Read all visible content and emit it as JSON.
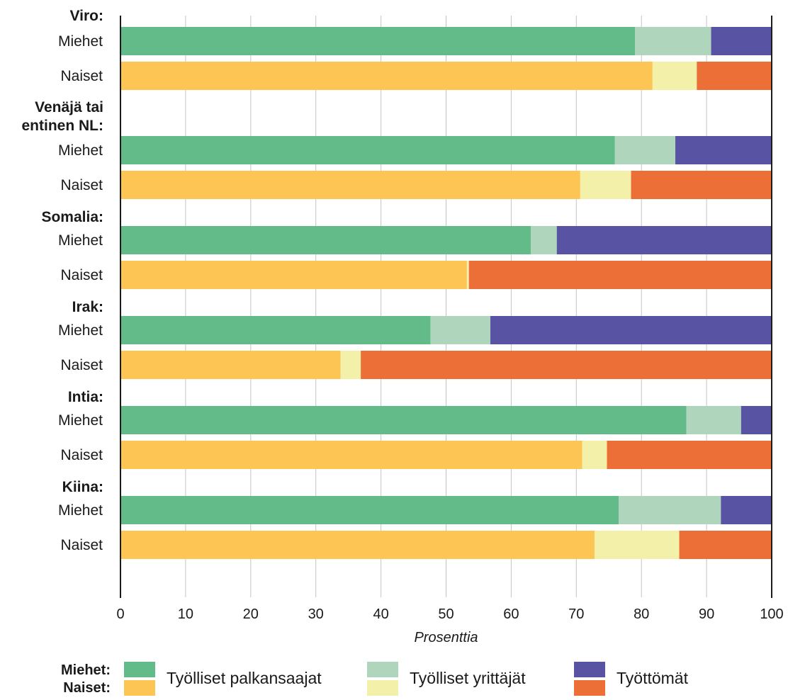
{
  "chart_data": {
    "type": "bar",
    "orientation": "horizontal",
    "stacked": true,
    "xlabel": "Prosenttia",
    "xlim": [
      0,
      100
    ],
    "xticks": [
      "0",
      "10",
      "20",
      "30",
      "40",
      "50",
      "60",
      "70",
      "80",
      "90",
      "100"
    ],
    "grid": true,
    "groups": [
      {
        "label": "Viro:",
        "rows": [
          {
            "label": "Miehet",
            "sex": "men",
            "values": [
              79.0,
              11.7,
              9.3
            ]
          },
          {
            "label": "Naiset",
            "sex": "women",
            "values": [
              81.7,
              6.8,
              11.5
            ]
          }
        ]
      },
      {
        "label": "Venäjä tai entinen NL:",
        "label_lines": [
          "Venäjä tai",
          "entinen NL:"
        ],
        "rows": [
          {
            "label": "Miehet",
            "sex": "men",
            "values": [
              75.9,
              9.3,
              14.8
            ]
          },
          {
            "label": "Naiset",
            "sex": "women",
            "values": [
              70.6,
              7.8,
              21.6
            ]
          }
        ]
      },
      {
        "label": "Somalia:",
        "rows": [
          {
            "label": "Miehet",
            "sex": "men",
            "values": [
              63.0,
              4.0,
              33.0
            ]
          },
          {
            "label": "Naiset",
            "sex": "women",
            "values": [
              53.2,
              0.3,
              46.5
            ]
          }
        ]
      },
      {
        "label": "Irak:",
        "rows": [
          {
            "label": "Miehet",
            "sex": "men",
            "values": [
              47.6,
              9.2,
              43.2
            ]
          },
          {
            "label": "Naiset",
            "sex": "women",
            "values": [
              33.8,
              3.1,
              63.1
            ]
          }
        ]
      },
      {
        "label": "Intia:",
        "rows": [
          {
            "label": "Miehet",
            "sex": "men",
            "values": [
              86.9,
              8.4,
              4.7
            ]
          },
          {
            "label": "Naiset",
            "sex": "women",
            "values": [
              70.9,
              3.8,
              25.3
            ]
          }
        ]
      },
      {
        "label": "Kiina:",
        "rows": [
          {
            "label": "Miehet",
            "sex": "men",
            "values": [
              76.5,
              15.7,
              7.8
            ]
          },
          {
            "label": "Naiset",
            "sex": "women",
            "values": [
              72.8,
              13.0,
              14.2
            ]
          }
        ]
      }
    ],
    "colors": {
      "men": [
        "#62bb89",
        "#afd6bc",
        "#5953a3"
      ],
      "women": [
        "#fcc554",
        "#f3f0aa",
        "#ec6f38"
      ]
    }
  },
  "legend": {
    "row_label_men": "Miehet:",
    "row_label_women": "Naiset:",
    "items": [
      {
        "label": "Työlliset palkansaajat"
      },
      {
        "label": "Työlliset yrittäjät"
      },
      {
        "label": "Työttömät"
      }
    ]
  }
}
